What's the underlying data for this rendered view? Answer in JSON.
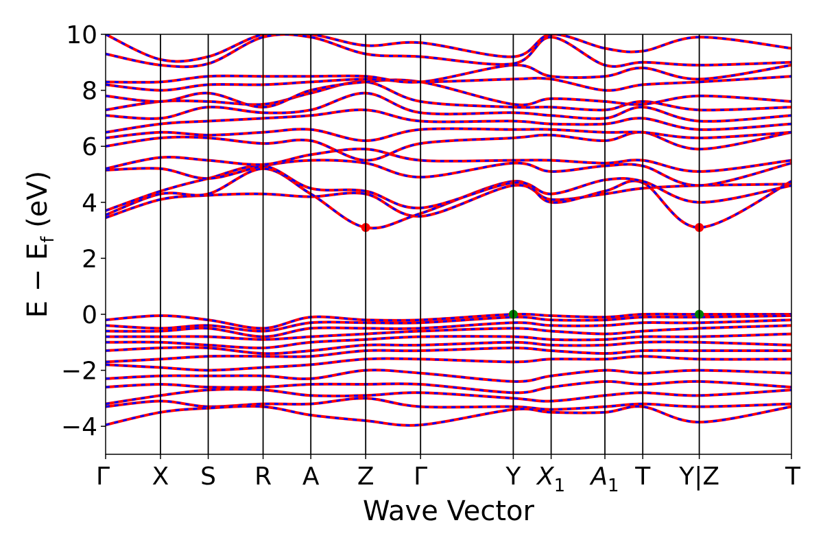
{
  "chart_data": {
    "type": "line",
    "title": "",
    "xlabel": "Wave Vector",
    "ylabel": "E − E_f (eV)",
    "ylabel_parts": {
      "main": "E − E",
      "subscript": "f",
      "unit": " (eV)"
    },
    "ylim": [
      -5,
      10
    ],
    "y_ticks": [
      -4,
      -2,
      0,
      2,
      4,
      6,
      8,
      10
    ],
    "y_tick_labels": [
      "−4",
      "−2",
      "0",
      "2",
      "4",
      "6",
      "8",
      "10"
    ],
    "high_symmetry_points": [
      {
        "label": "Γ",
        "sub": "",
        "x": 0.0
      },
      {
        "label": "X",
        "sub": "",
        "x": 1.0
      },
      {
        "label": "S",
        "sub": "",
        "x": 1.87
      },
      {
        "label": "R",
        "sub": "",
        "x": 2.87
      },
      {
        "label": "A",
        "sub": "",
        "x": 3.74
      },
      {
        "label": "Z",
        "sub": "",
        "x": 4.74
      },
      {
        "label": "Γ",
        "sub": "",
        "x": 5.74
      },
      {
        "label": "Y",
        "sub": "",
        "x": 7.43
      },
      {
        "label": "X",
        "sub": "1",
        "x": 8.12
      },
      {
        "label": "A",
        "sub": "1",
        "x": 9.1
      },
      {
        "label": "T",
        "sub": "",
        "x": 9.79
      },
      {
        "label": "Y|Z",
        "sub": "",
        "x": 10.82
      },
      {
        "label": "T",
        "sub": "",
        "x": 12.5
      }
    ],
    "xlim": [
      0,
      12.5
    ],
    "series_colors": {
      "spin_up": "#0000ff",
      "spin_down": "#ff0000"
    },
    "line_style": "red solid over blue dashed",
    "gridlines": false,
    "conduction_bands": [
      [
        3.45,
        4.1,
        4.25,
        4.3,
        4.2,
        4.3,
        3.5,
        4.6,
        4.1,
        4.3,
        4.5,
        4.6,
        4.65
      ],
      [
        3.55,
        4.3,
        4.3,
        5.2,
        4.3,
        3.1,
        3.6,
        4.75,
        4.0,
        4.4,
        4.7,
        3.1,
        4.75
      ],
      [
        3.7,
        4.4,
        4.85,
        5.3,
        4.5,
        4.4,
        3.8,
        4.7,
        4.3,
        4.8,
        4.75,
        4.0,
        4.6
      ],
      [
        5.15,
        5.2,
        4.85,
        5.3,
        5.5,
        5.4,
        4.9,
        5.4,
        5.1,
        5.3,
        5.3,
        4.6,
        5.4
      ],
      [
        5.2,
        5.6,
        5.5,
        5.35,
        5.7,
        5.9,
        5.5,
        5.5,
        5.5,
        5.4,
        5.5,
        5.1,
        5.5
      ],
      [
        6.0,
        6.3,
        6.3,
        6.1,
        6.2,
        5.5,
        6.1,
        6.3,
        6.4,
        6.2,
        6.5,
        5.9,
        6.5
      ],
      [
        6.3,
        6.5,
        6.4,
        6.5,
        6.6,
        6.2,
        6.6,
        6.6,
        6.6,
        6.5,
        6.5,
        6.3,
        6.5
      ],
      [
        6.5,
        6.8,
        6.9,
        7.0,
        7.1,
        7.3,
        6.9,
        6.9,
        6.8,
        6.8,
        7.0,
        6.6,
        6.8
      ],
      [
        7.1,
        7.0,
        7.4,
        7.2,
        7.3,
        7.9,
        7.2,
        7.2,
        7.1,
        7.0,
        7.4,
        6.9,
        7.1
      ],
      [
        7.3,
        7.6,
        7.6,
        7.5,
        7.9,
        8.3,
        7.6,
        7.4,
        7.4,
        7.3,
        7.6,
        7.3,
        7.4
      ],
      [
        7.8,
        7.6,
        7.9,
        7.4,
        8.0,
        8.3,
        8.3,
        7.5,
        7.7,
        7.6,
        7.5,
        7.8,
        7.6
      ],
      [
        8.2,
        8.0,
        8.2,
        8.2,
        8.3,
        8.4,
        8.3,
        8.4,
        8.4,
        8.0,
        8.2,
        8.3,
        8.5
      ],
      [
        8.3,
        8.3,
        8.5,
        8.5,
        8.5,
        8.5,
        8.3,
        8.9,
        8.5,
        8.5,
        8.8,
        8.4,
        8.9
      ],
      [
        9.3,
        8.9,
        8.95,
        9.9,
        9.9,
        9.3,
        9.2,
        8.95,
        9.9,
        8.9,
        9.0,
        8.9,
        9.0
      ],
      [
        10.0,
        9.1,
        9.2,
        10.0,
        10.0,
        9.6,
        9.7,
        9.2,
        10.0,
        9.5,
        9.4,
        9.9,
        9.5
      ]
    ],
    "valence_bands": [
      [
        -0.2,
        -0.05,
        -0.2,
        -0.5,
        -0.1,
        -0.2,
        -0.2,
        0.0,
        -0.05,
        -0.1,
        0.0,
        0.0,
        0.0
      ],
      [
        -0.4,
        -0.5,
        -0.4,
        -0.6,
        -0.3,
        -0.3,
        -0.3,
        -0.1,
        -0.2,
        -0.2,
        -0.1,
        -0.1,
        -0.05
      ],
      [
        -0.6,
        -0.6,
        -0.5,
        -0.8,
        -0.5,
        -0.5,
        -0.5,
        -0.3,
        -0.4,
        -0.4,
        -0.3,
        -0.3,
        -0.2
      ],
      [
        -0.8,
        -0.8,
        -0.8,
        -0.9,
        -0.8,
        -0.7,
        -0.6,
        -0.5,
        -0.6,
        -0.7,
        -0.6,
        -0.5,
        -0.4
      ],
      [
        -1.0,
        -1.0,
        -1.1,
        -1.2,
        -1.0,
        -0.9,
        -0.8,
        -0.8,
        -0.9,
        -0.9,
        -0.8,
        -0.8,
        -0.7
      ],
      [
        -1.3,
        -1.2,
        -1.2,
        -1.4,
        -1.3,
        -1.1,
        -1.1,
        -1.0,
        -1.1,
        -1.1,
        -1.0,
        -1.0,
        -1.1
      ],
      [
        -1.7,
        -1.6,
        -1.5,
        -1.5,
        -1.5,
        -1.3,
        -1.3,
        -1.2,
        -1.3,
        -1.4,
        -1.3,
        -1.3,
        -1.3
      ],
      [
        -1.8,
        -1.9,
        -2.0,
        -1.9,
        -1.8,
        -1.6,
        -1.6,
        -1.7,
        -1.6,
        -1.6,
        -1.5,
        -1.6,
        -1.6
      ],
      [
        -2.3,
        -2.2,
        -2.2,
        -2.2,
        -2.3,
        -2.0,
        -2.1,
        -2.4,
        -2.2,
        -2.0,
        -2.1,
        -2.0,
        -2.1
      ],
      [
        -2.6,
        -2.5,
        -2.6,
        -2.6,
        -2.5,
        -2.5,
        -2.5,
        -2.8,
        -2.6,
        -2.4,
        -2.5,
        -2.4,
        -2.6
      ],
      [
        -3.2,
        -2.9,
        -2.7,
        -2.7,
        -2.9,
        -2.9,
        -2.8,
        -3.0,
        -3.1,
        -2.9,
        -2.8,
        -2.9,
        -2.7
      ],
      [
        -3.3,
        -3.1,
        -3.3,
        -3.2,
        -3.2,
        -3.0,
        -3.3,
        -3.3,
        -3.4,
        -3.3,
        -3.2,
        -3.3,
        -3.2
      ],
      [
        -3.95,
        -3.5,
        -3.35,
        -3.3,
        -3.6,
        -3.8,
        -3.95,
        -3.4,
        -3.5,
        -3.5,
        -3.3,
        -3.85,
        -3.3
      ]
    ],
    "markers": [
      {
        "x": 4.74,
        "y": 3.1,
        "color": "#ff0000",
        "kind": "CBM"
      },
      {
        "x": 10.82,
        "y": 3.1,
        "color": "#ff0000",
        "kind": "CBM"
      },
      {
        "x": 7.43,
        "y": 0.0,
        "color": "#008000",
        "kind": "VBM"
      },
      {
        "x": 10.82,
        "y": 0.0,
        "color": "#008000",
        "kind": "VBM"
      }
    ]
  }
}
